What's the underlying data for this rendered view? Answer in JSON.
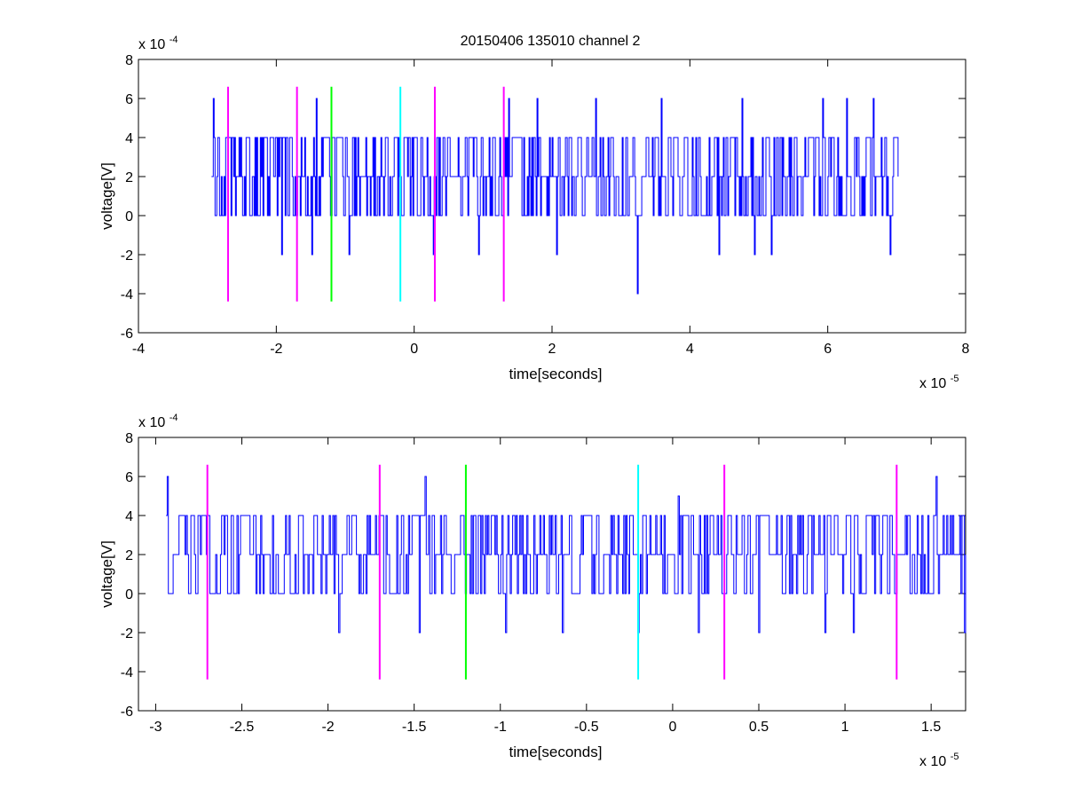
{
  "figure": {
    "title": "20150406 135010 channel 2"
  },
  "chart_data": [
    {
      "type": "line",
      "title": "20150406 135010 channel 2",
      "xlabel": "time[seconds]",
      "ylabel": "voltage[V]",
      "x_exponent_label": "x 10",
      "x_exponent": "-5",
      "y_exponent_label": "x 10",
      "y_exponent": "-4",
      "xlim": [
        -4,
        8
      ],
      "ylim": [
        -6,
        8
      ],
      "xticks": [
        -4,
        -2,
        0,
        2,
        4,
        6,
        8
      ],
      "xtick_labels": [
        "-4",
        "-2",
        "0",
        "2",
        "4",
        "6",
        "8"
      ],
      "yticks": [
        -6,
        -4,
        -2,
        0,
        2,
        4,
        6,
        8
      ],
      "ytick_labels": [
        "-6",
        "-4",
        "-2",
        "0",
        "2",
        "4",
        "6",
        "8"
      ],
      "grid": false,
      "series": [
        {
          "color": "#0000ff",
          "x_range": [
            -2.94,
            7.02
          ],
          "levels": [
            0,
            2,
            4
          ],
          "spikes": [
            {
              "x": -2.92,
              "y": 6
            },
            {
              "x": -1.92,
              "y": -2
            },
            {
              "x": -1.48,
              "y": -2
            },
            {
              "x": -1.42,
              "y": 6
            },
            {
              "x": -0.95,
              "y": -2
            },
            {
              "x": 0.28,
              "y": -2
            },
            {
              "x": 0.93,
              "y": -2
            },
            {
              "x": 1.37,
              "y": 6
            },
            {
              "x": 1.78,
              "y": 6
            },
            {
              "x": 2.07,
              "y": -2
            },
            {
              "x": 2.63,
              "y": 6
            },
            {
              "x": 3.24,
              "y": -4
            },
            {
              "x": 3.58,
              "y": 6
            },
            {
              "x": 4.42,
              "y": -2
            },
            {
              "x": 4.76,
              "y": 6
            },
            {
              "x": 4.93,
              "y": -2
            },
            {
              "x": 5.18,
              "y": -2
            },
            {
              "x": 5.92,
              "y": 6
            },
            {
              "x": 6.28,
              "y": 6
            },
            {
              "x": 6.66,
              "y": 6
            },
            {
              "x": 6.9,
              "y": -2
            }
          ]
        }
      ],
      "markers": [
        {
          "x": -2.7,
          "color": "#ff00ff",
          "y_from": -4.4,
          "y_to": 6.6
        },
        {
          "x": -1.7,
          "color": "#ff00ff",
          "y_from": -4.4,
          "y_to": 6.6
        },
        {
          "x": -1.2,
          "color": "#00ff00",
          "y_from": -4.4,
          "y_to": 6.6
        },
        {
          "x": -0.2,
          "color": "#00ffff",
          "y_from": -4.4,
          "y_to": 6.6
        },
        {
          "x": 0.3,
          "color": "#ff00ff",
          "y_from": -4.4,
          "y_to": 6.6
        },
        {
          "x": 1.3,
          "color": "#ff00ff",
          "y_from": -4.4,
          "y_to": 6.6
        }
      ]
    },
    {
      "type": "line",
      "title": "",
      "xlabel": "time[seconds]",
      "ylabel": "voltage[V]",
      "x_exponent_label": "x 10",
      "x_exponent": "-5",
      "y_exponent_label": "x 10",
      "y_exponent": "-4",
      "xlim": [
        -3.1,
        1.7
      ],
      "ylim": [
        -6,
        8
      ],
      "xticks": [
        -3,
        -2.5,
        -2,
        -1.5,
        -1,
        -0.5,
        0,
        0.5,
        1,
        1.5
      ],
      "xtick_labels": [
        "-3",
        "-2.5",
        "-2",
        "-1.5",
        "-1",
        "-0.5",
        "0",
        "0.5",
        "1",
        "1.5"
      ],
      "yticks": [
        -6,
        -4,
        -2,
        0,
        2,
        4,
        6,
        8
      ],
      "ytick_labels": [
        "-6",
        "-4",
        "-2",
        "0",
        "2",
        "4",
        "6",
        "8"
      ],
      "grid": false,
      "series": [
        {
          "color": "#0000ff",
          "x_range": [
            -2.94,
            1.7
          ],
          "levels": [
            0,
            2,
            4
          ],
          "spikes": [
            {
              "x": -2.93,
              "y": 6
            },
            {
              "x": -1.94,
              "y": -2
            },
            {
              "x": -1.47,
              "y": -2
            },
            {
              "x": -1.44,
              "y": 6
            },
            {
              "x": -0.97,
              "y": -2
            },
            {
              "x": -0.64,
              "y": -2
            },
            {
              "x": -0.2,
              "y": -2
            },
            {
              "x": 0.03,
              "y": 5
            },
            {
              "x": 0.15,
              "y": -2
            },
            {
              "x": 0.5,
              "y": -2
            },
            {
              "x": 0.88,
              "y": -2
            },
            {
              "x": 1.05,
              "y": -2
            },
            {
              "x": 1.53,
              "y": 6
            },
            {
              "x": 1.69,
              "y": -2
            }
          ]
        }
      ],
      "markers": [
        {
          "x": -2.7,
          "color": "#ff00ff",
          "y_from": -4.4,
          "y_to": 6.6
        },
        {
          "x": -1.7,
          "color": "#ff00ff",
          "y_from": -4.4,
          "y_to": 6.6
        },
        {
          "x": -1.2,
          "color": "#00ff00",
          "y_from": -4.4,
          "y_to": 6.6
        },
        {
          "x": -0.2,
          "color": "#00ffff",
          "y_from": -4.4,
          "y_to": 6.6
        },
        {
          "x": 0.3,
          "color": "#ff00ff",
          "y_from": -4.4,
          "y_to": 6.6
        },
        {
          "x": 1.3,
          "color": "#ff00ff",
          "y_from": -4.4,
          "y_to": 6.6
        }
      ]
    }
  ]
}
